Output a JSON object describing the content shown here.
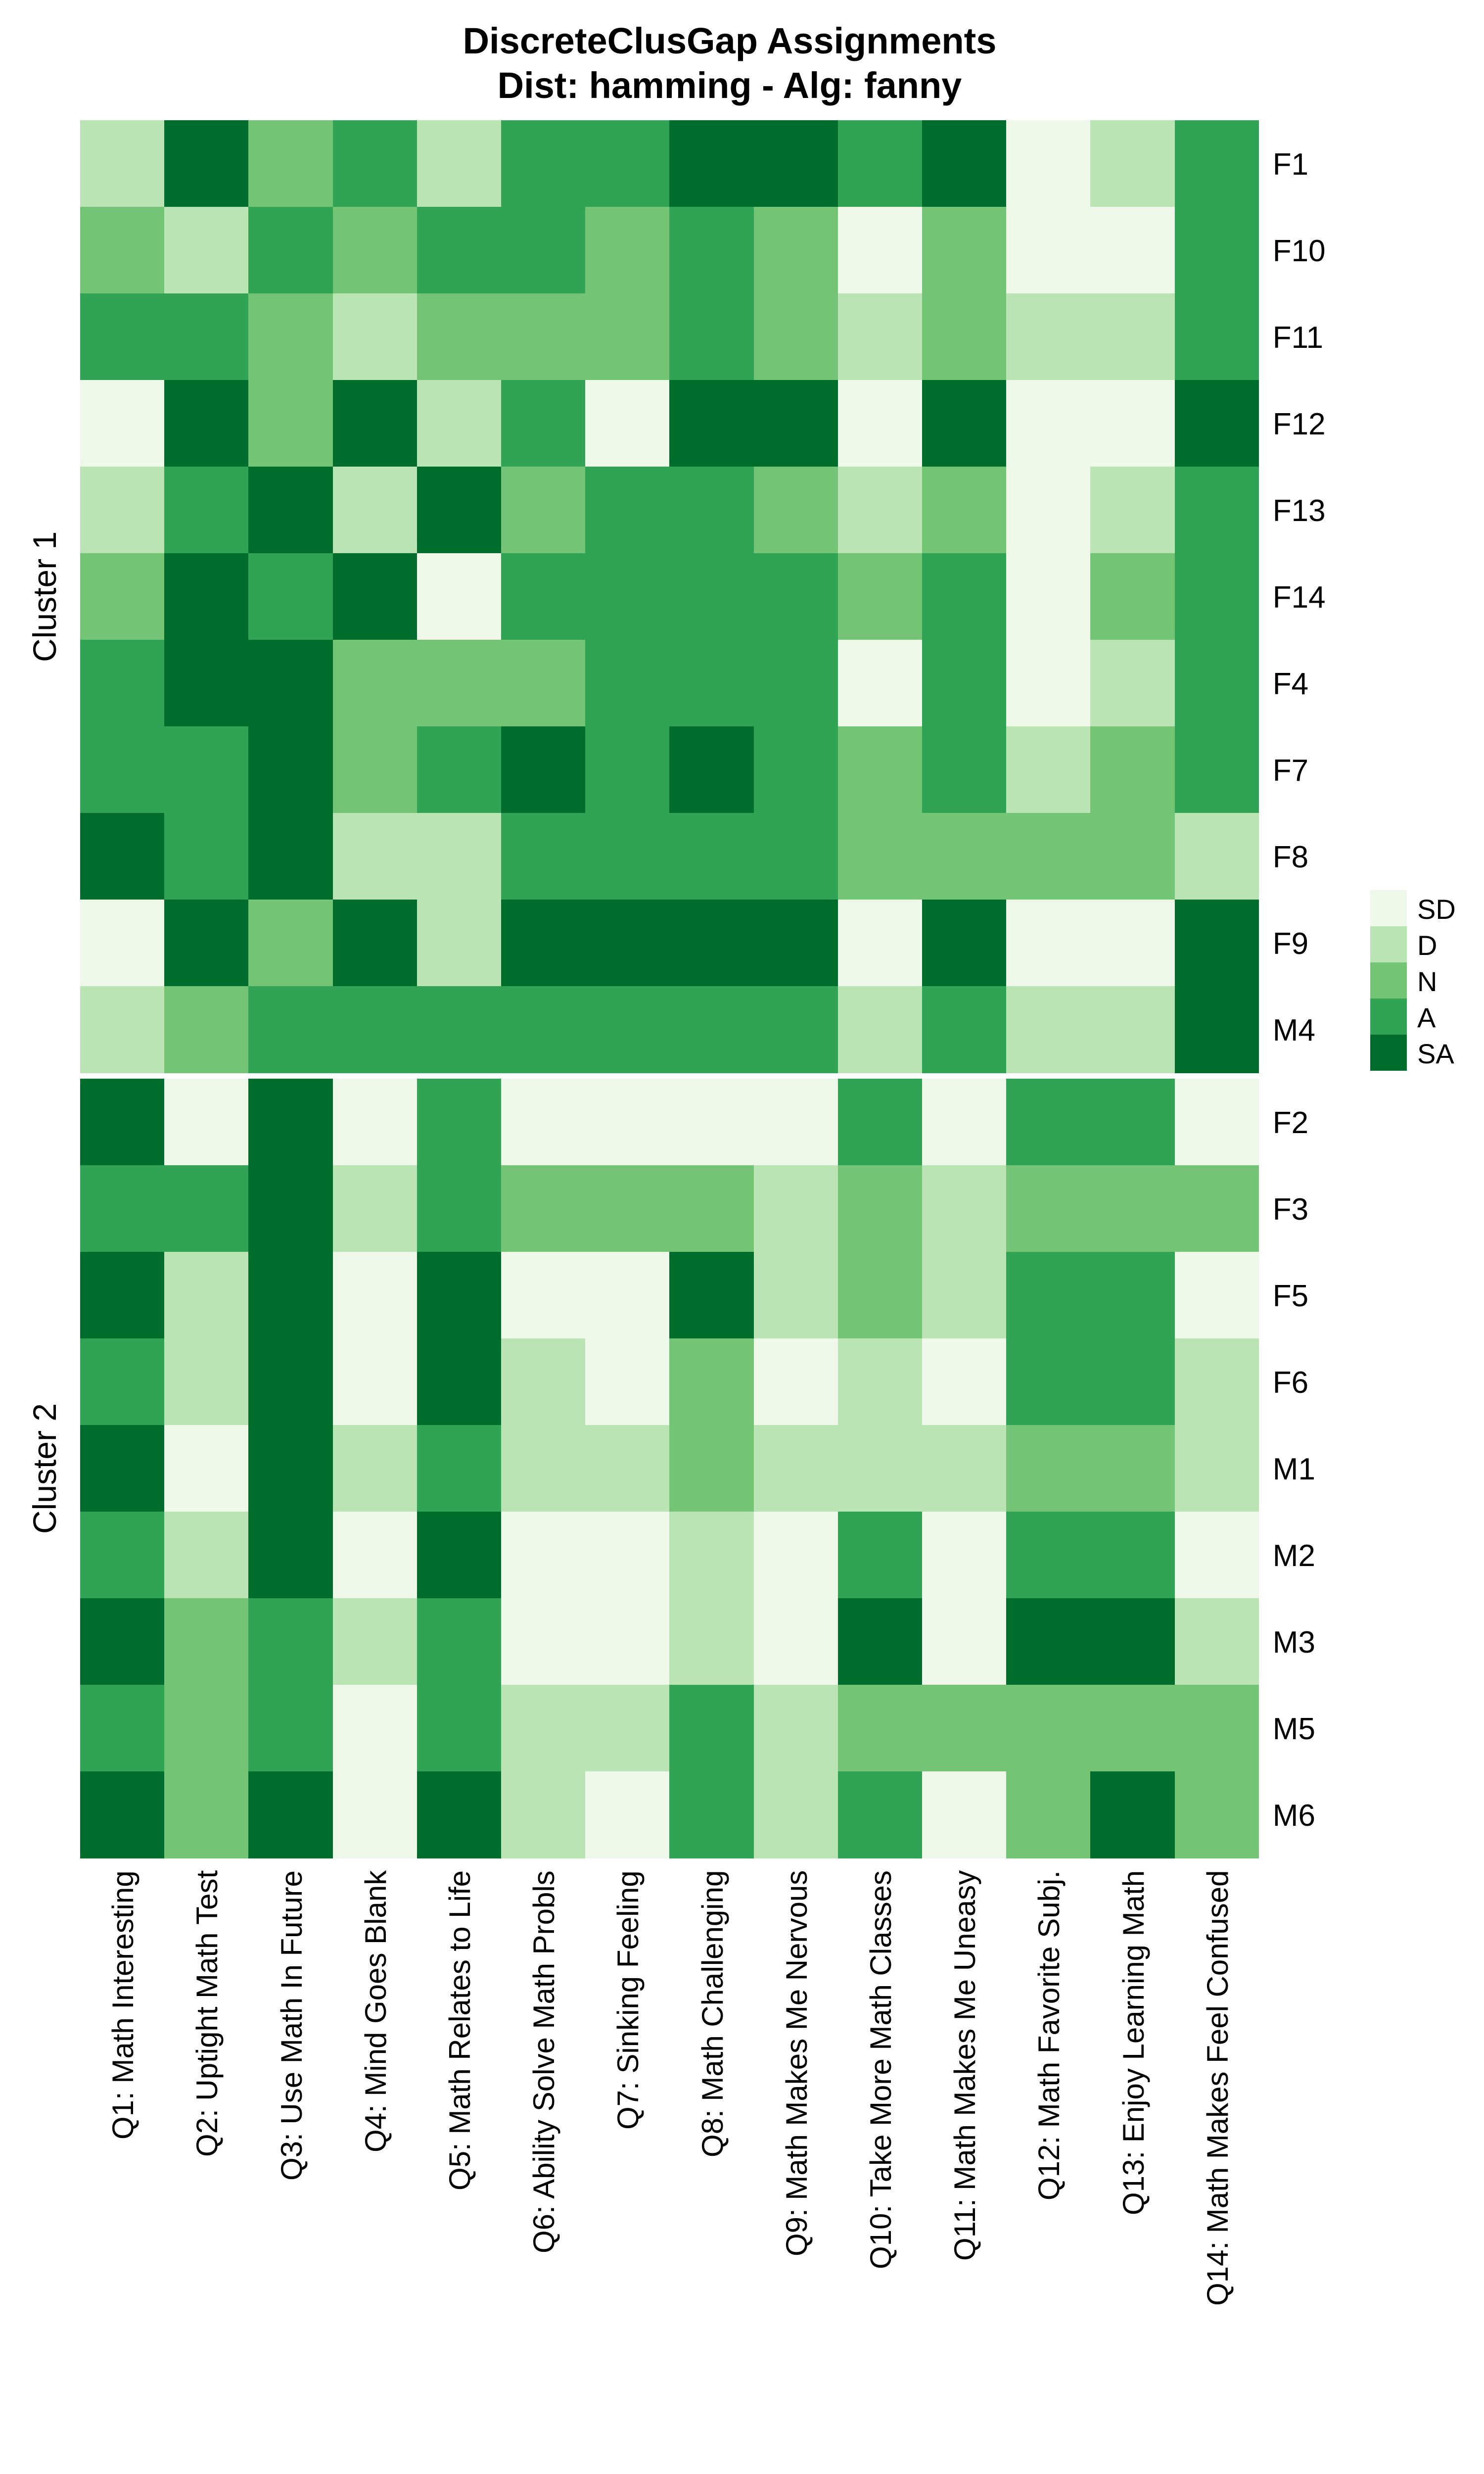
{
  "title": {
    "line1": "DiscreteClusGap Assignments",
    "line2": "Dist: hamming - Alg: fanny"
  },
  "legend": {
    "entries": [
      {
        "label": "SD",
        "color": "#edf8e9"
      },
      {
        "label": "D",
        "color": "#bae4b3"
      },
      {
        "label": "N",
        "color": "#74c476"
      },
      {
        "label": "A",
        "color": "#31a354"
      },
      {
        "label": "SA",
        "color": "#006d2c"
      }
    ]
  },
  "chart_data": {
    "type": "heatmap",
    "title": "DiscreteClusGap Assignments",
    "subtitle": "Dist: hamming - Alg: fanny",
    "distance": "hamming",
    "algorithm": "fanny",
    "levels": [
      "SD",
      "D",
      "N",
      "A",
      "SA"
    ],
    "colors": {
      "SD": "#edf8e9",
      "D": "#bae4b3",
      "N": "#74c476",
      "A": "#31a354",
      "SA": "#006d2c"
    },
    "columns": [
      "Q1: Math Interesting",
      "Q2: Uptight Math Test",
      "Q3: Use Math In Future",
      "Q4: Mind Goes Blank",
      "Q5: Math Relates to Life",
      "Q6: Ability Solve Math Probls",
      "Q7: Sinking Feeling",
      "Q8: Math Challenging",
      "Q9: Math Makes Me Nervous",
      "Q10: Take More Math Classes",
      "Q11: Math Makes Me Uneasy",
      "Q12: Math Favorite Subj.",
      "Q13: Enjoy Learning Math",
      "Q14: Math Makes Feel Confused"
    ],
    "clusters": [
      {
        "name": "Cluster 1",
        "rows": [
          {
            "label": "F1",
            "values": [
              "D",
              "SA",
              "N",
              "A",
              "D",
              "A",
              "A",
              "SA",
              "SA",
              "A",
              "SA",
              "SD",
              "D",
              "A"
            ]
          },
          {
            "label": "F10",
            "values": [
              "N",
              "D",
              "A",
              "N",
              "A",
              "A",
              "N",
              "A",
              "N",
              "SD",
              "N",
              "SD",
              "SD",
              "A"
            ]
          },
          {
            "label": "F11",
            "values": [
              "A",
              "A",
              "N",
              "D",
              "N",
              "N",
              "N",
              "A",
              "N",
              "D",
              "N",
              "D",
              "D",
              "A"
            ]
          },
          {
            "label": "F12",
            "values": [
              "SD",
              "SA",
              "N",
              "SA",
              "D",
              "A",
              "SD",
              "SA",
              "SA",
              "SD",
              "SA",
              "SD",
              "SD",
              "SA"
            ]
          },
          {
            "label": "F13",
            "values": [
              "D",
              "A",
              "SA",
              "D",
              "SA",
              "N",
              "A",
              "A",
              "N",
              "D",
              "N",
              "SD",
              "D",
              "A"
            ]
          },
          {
            "label": "F14",
            "values": [
              "N",
              "SA",
              "A",
              "SA",
              "SD",
              "A",
              "A",
              "A",
              "A",
              "N",
              "A",
              "SD",
              "N",
              "A"
            ]
          },
          {
            "label": "F4",
            "values": [
              "A",
              "SA",
              "SA",
              "N",
              "N",
              "N",
              "A",
              "A",
              "A",
              "SD",
              "A",
              "SD",
              "D",
              "A"
            ]
          },
          {
            "label": "F7",
            "values": [
              "A",
              "A",
              "SA",
              "N",
              "A",
              "SA",
              "A",
              "SA",
              "A",
              "N",
              "A",
              "D",
              "N",
              "A"
            ]
          },
          {
            "label": "F8",
            "values": [
              "SA",
              "A",
              "SA",
              "D",
              "D",
              "A",
              "A",
              "A",
              "A",
              "N",
              "N",
              "N",
              "N",
              "D"
            ]
          },
          {
            "label": "F9",
            "values": [
              "SD",
              "SA",
              "N",
              "SA",
              "D",
              "SA",
              "SA",
              "SA",
              "SA",
              "SD",
              "SA",
              "SD",
              "SD",
              "SA"
            ]
          },
          {
            "label": "M4",
            "values": [
              "D",
              "N",
              "A",
              "A",
              "A",
              "A",
              "A",
              "A",
              "A",
              "D",
              "A",
              "D",
              "D",
              "SA"
            ]
          }
        ]
      },
      {
        "name": "Cluster 2",
        "rows": [
          {
            "label": "F2",
            "values": [
              "SA",
              "SD",
              "SA",
              "SD",
              "A",
              "SD",
              "SD",
              "SD",
              "SD",
              "A",
              "SD",
              "A",
              "A",
              "SD"
            ]
          },
          {
            "label": "F3",
            "values": [
              "A",
              "A",
              "SA",
              "D",
              "A",
              "N",
              "N",
              "N",
              "D",
              "N",
              "D",
              "N",
              "N",
              "N"
            ]
          },
          {
            "label": "F5",
            "values": [
              "SA",
              "D",
              "SA",
              "SD",
              "SA",
              "SD",
              "SD",
              "SA",
              "D",
              "N",
              "D",
              "A",
              "A",
              "SD"
            ]
          },
          {
            "label": "F6",
            "values": [
              "A",
              "D",
              "SA",
              "SD",
              "SA",
              "D",
              "SD",
              "N",
              "SD",
              "D",
              "SD",
              "A",
              "A",
              "D"
            ]
          },
          {
            "label": "M1",
            "values": [
              "SA",
              "SD",
              "SA",
              "D",
              "A",
              "D",
              "D",
              "N",
              "D",
              "D",
              "D",
              "N",
              "N",
              "D"
            ]
          },
          {
            "label": "M2",
            "values": [
              "A",
              "D",
              "SA",
              "SD",
              "SA",
              "SD",
              "SD",
              "D",
              "SD",
              "A",
              "SD",
              "A",
              "A",
              "SD"
            ]
          },
          {
            "label": "M3",
            "values": [
              "SA",
              "N",
              "A",
              "D",
              "A",
              "SD",
              "SD",
              "D",
              "SD",
              "SA",
              "SD",
              "SA",
              "SA",
              "D"
            ]
          },
          {
            "label": "M5",
            "values": [
              "A",
              "N",
              "A",
              "SD",
              "A",
              "D",
              "D",
              "A",
              "D",
              "N",
              "N",
              "N",
              "N",
              "N"
            ]
          },
          {
            "label": "M6",
            "values": [
              "SA",
              "N",
              "SA",
              "SD",
              "SA",
              "D",
              "SD",
              "A",
              "D",
              "A",
              "SD",
              "N",
              "SA",
              "N"
            ]
          }
        ]
      }
    ],
    "layout": {
      "grid": false,
      "legend_position": "right",
      "x_labels_rotated": true,
      "y_labels_position": "right"
    }
  }
}
